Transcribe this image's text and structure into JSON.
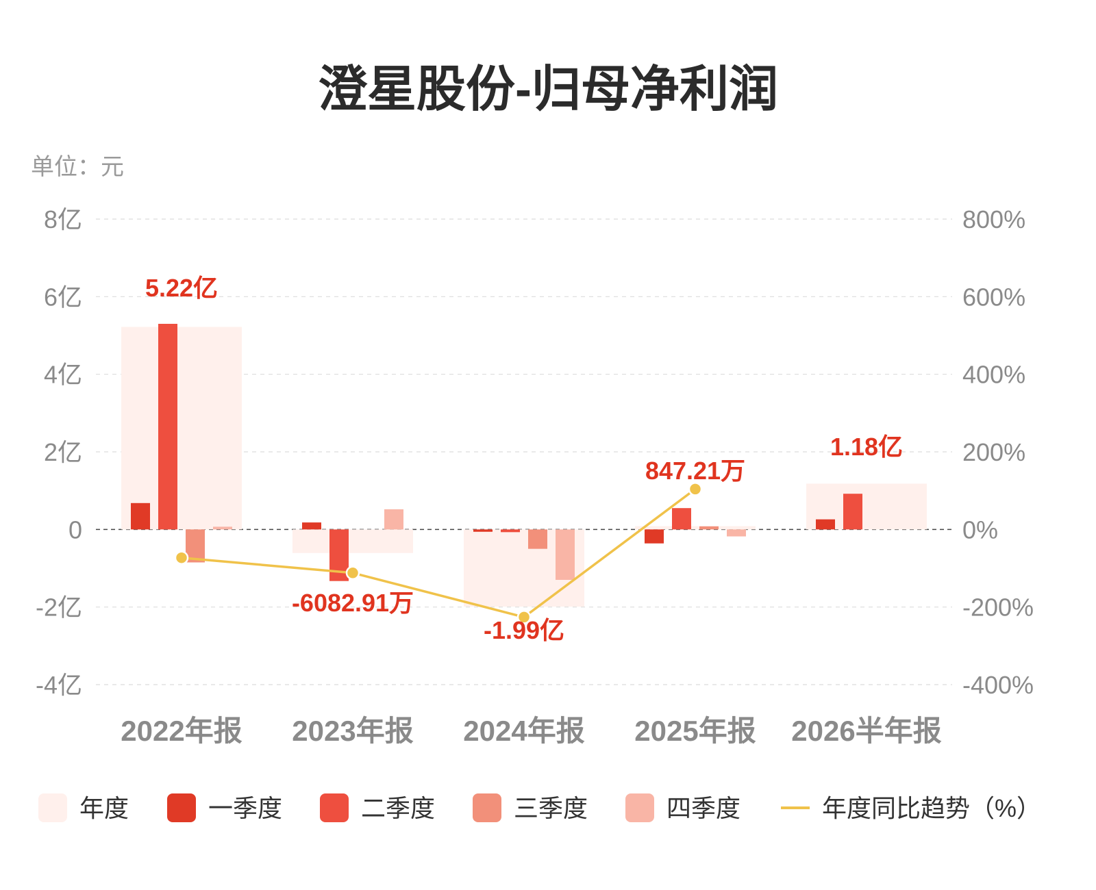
{
  "header": {
    "title": "澄星股份-归母净利润",
    "unit": "单位：元"
  },
  "colors": {
    "annual": "#fff0ec",
    "q1": "#e03a26",
    "q2": "#ee4f3f",
    "q3": "#f2907a",
    "q4": "#f9b5a6",
    "trend": "#f0c24a",
    "label": "#e0341f"
  },
  "chart_data": {
    "type": "bar",
    "categories": [
      "2022年报",
      "2023年报",
      "2024年报",
      "2025年报",
      "2026半年报"
    ],
    "y_left": {
      "ticks": [
        "8亿",
        "6亿",
        "4亿",
        "2亿",
        "0",
        "-2亿",
        "-4亿"
      ],
      "range_yi": [
        -4,
        8
      ]
    },
    "y_right": {
      "ticks": [
        "800%",
        "600%",
        "400%",
        "200%",
        "0%",
        "-200%",
        "-400%"
      ],
      "range_pct": [
        -400,
        800
      ]
    },
    "grid": true,
    "legend_position": "bottom",
    "series": [
      {
        "name": "年度",
        "kind": "annual",
        "values_yi": [
          5.22,
          -0.6083,
          -1.99,
          0.0847,
          1.18
        ]
      },
      {
        "name": "一季度",
        "kind": "q1",
        "values_yi": [
          0.68,
          0.18,
          -0.06,
          -0.36,
          0.26
        ]
      },
      {
        "name": "二季度",
        "kind": "q2",
        "values_yi": [
          5.3,
          -1.33,
          -0.07,
          0.55,
          0.92
        ]
      },
      {
        "name": "三季度",
        "kind": "q3",
        "values_yi": [
          -0.85,
          0.0,
          -0.5,
          0.08,
          null
        ]
      },
      {
        "name": "四季度",
        "kind": "q4",
        "values_yi": [
          0.07,
          0.52,
          -1.3,
          -0.18,
          null
        ]
      },
      {
        "name": "年度同比趋势（%）",
        "kind": "trend",
        "values_pct": [
          -73,
          -112,
          -226,
          104,
          null
        ]
      }
    ],
    "data_labels": [
      "5.22亿",
      "-6082.91万",
      "-1.99亿",
      "847.21万",
      "1.18亿"
    ]
  }
}
